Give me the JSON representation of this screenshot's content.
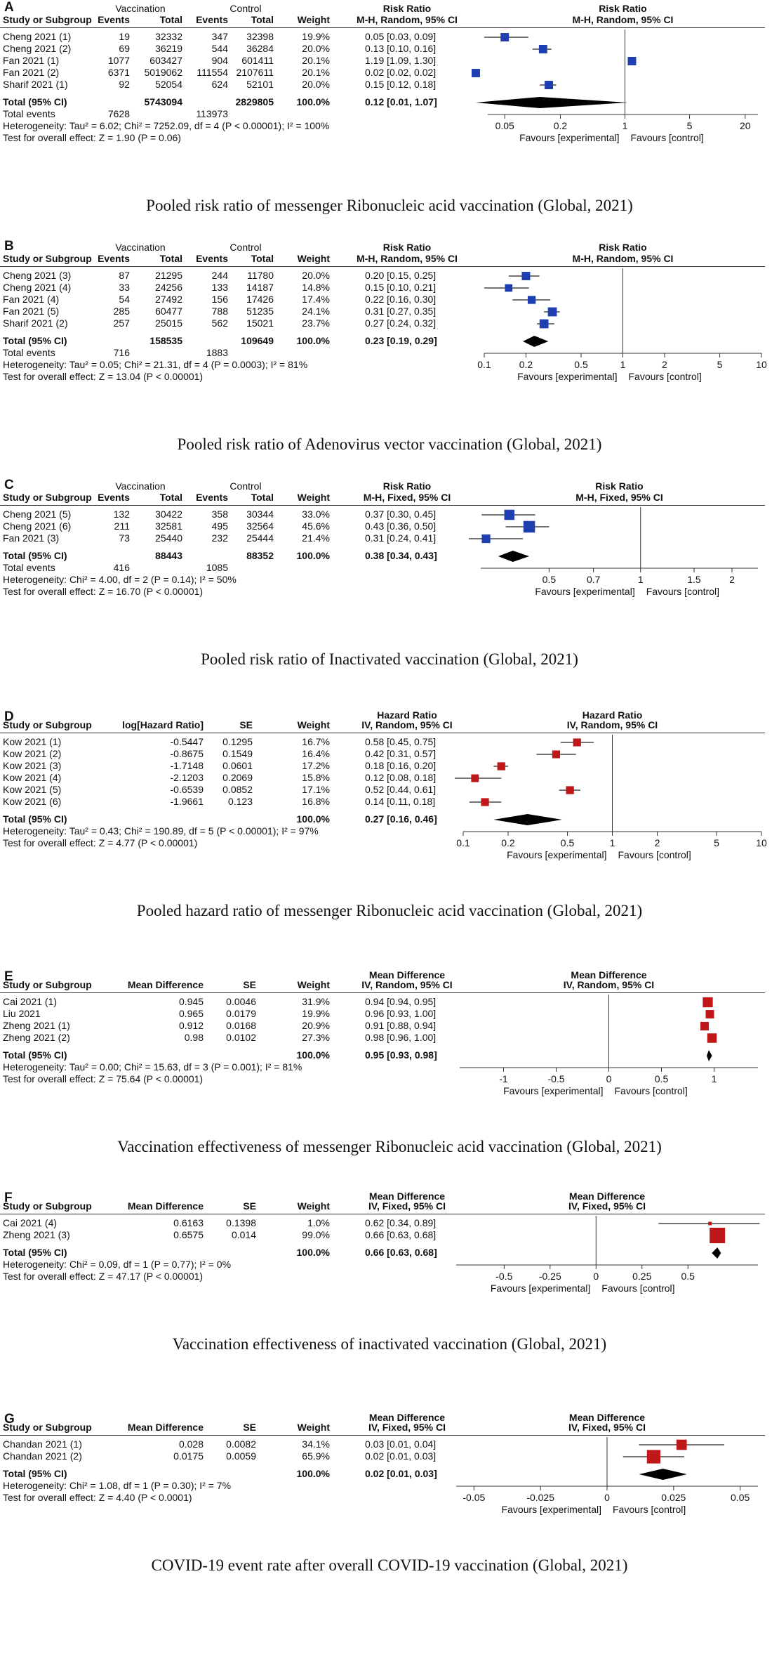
{
  "panels": [
    {
      "label": "A",
      "caption": "Pooled risk ratio of messenger Ribonucleic acid vaccination (Global, 2021)",
      "columns": [
        "Events",
        "Total",
        "Events",
        "Total"
      ],
      "group_headers": [
        "Vaccination",
        "Control"
      ],
      "col_study": "Study or Subgroup",
      "col_weight": "Weight",
      "col_effect": "Risk Ratio",
      "col_method": "M-H, Random, 95% CI",
      "rows": [
        {
          "study": "Cheng 2021 (1)",
          "c": [
            "19",
            "32332",
            "347",
            "32398"
          ],
          "weight": "19.9%",
          "ci": "0.05 [0.03, 0.09]",
          "est": 0.05,
          "lo": 0.03,
          "hi": 0.09
        },
        {
          "study": "Cheng 2021 (2)",
          "c": [
            "69",
            "36219",
            "544",
            "36284"
          ],
          "weight": "20.0%",
          "ci": "0.13 [0.10, 0.16]",
          "est": 0.13,
          "lo": 0.1,
          "hi": 0.16
        },
        {
          "study": "Fan 2021 (1)",
          "c": [
            "1077",
            "603427",
            "904",
            "601411"
          ],
          "weight": "20.1%",
          "ci": "1.19 [1.09, 1.30]",
          "est": 1.19,
          "lo": 1.09,
          "hi": 1.3
        },
        {
          "study": "Fan 2021 (2)",
          "c": [
            "6371",
            "5019062",
            "111554",
            "2107611"
          ],
          "weight": "20.1%",
          "ci": "0.02 [0.02, 0.02]",
          "est": 0.02,
          "lo": 0.02,
          "hi": 0.02
        },
        {
          "study": "Sharif 2021 (1)",
          "c": [
            "92",
            "52054",
            "624",
            "52101"
          ],
          "weight": "20.0%",
          "ci": "0.15 [0.12, 0.18]",
          "est": 0.15,
          "lo": 0.12,
          "hi": 0.18
        }
      ],
      "total": {
        "label": "Total (95% CI)",
        "c": [
          "",
          "5743094",
          "",
          "2829805"
        ],
        "weight": "100.0%",
        "ci": "0.12 [0.01, 1.07]",
        "est": 0.12,
        "lo": 0.01,
        "hi": 1.07
      },
      "events": {
        "label": "Total events",
        "c": [
          "7628",
          "",
          "113973",
          ""
        ]
      },
      "heterogeneity": "Heterogeneity: Tau² = 6.02; Chi² = 7252.09, df = 4 (P < 0.00001); I² = 100%",
      "overall": "Test for overall effect: Z = 1.90 (P = 0.06)",
      "scale": "log",
      "xlim": [
        0.03,
        30
      ],
      "ticks": [
        0.05,
        0.2,
        1,
        5,
        20
      ],
      "tick_labels": [
        "0.05",
        "0.2",
        "1",
        "5",
        "20"
      ],
      "null": 1,
      "favours_left": "Favours [experimental]",
      "favours_right": "Favours [control]",
      "marker_color": "#1f3fb0"
    },
    {
      "label": "B",
      "caption": "Pooled risk ratio of Adenovirus vector vaccination (Global, 2021)",
      "columns": [
        "Events",
        "Total",
        "Events",
        "Total"
      ],
      "group_headers": [
        "Vaccination",
        "Control"
      ],
      "col_study": "Study or Subgroup",
      "col_weight": "Weight",
      "col_effect": "Risk Ratio",
      "col_method": "M-H, Random, 95% CI",
      "rows": [
        {
          "study": "Cheng 2021 (3)",
          "c": [
            "87",
            "21295",
            "244",
            "11780"
          ],
          "weight": "20.0%",
          "ci": "0.20 [0.15, 0.25]",
          "est": 0.2,
          "lo": 0.15,
          "hi": 0.25
        },
        {
          "study": "Cheng 2021 (4)",
          "c": [
            "33",
            "24256",
            "133",
            "14187"
          ],
          "weight": "14.8%",
          "ci": "0.15 [0.10, 0.21]",
          "est": 0.15,
          "lo": 0.1,
          "hi": 0.21
        },
        {
          "study": "Fan 2021 (4)",
          "c": [
            "54",
            "27492",
            "156",
            "17426"
          ],
          "weight": "17.4%",
          "ci": "0.22 [0.16, 0.30]",
          "est": 0.22,
          "lo": 0.16,
          "hi": 0.3
        },
        {
          "study": "Fan 2021 (5)",
          "c": [
            "285",
            "60477",
            "788",
            "51235"
          ],
          "weight": "24.1%",
          "ci": "0.31 [0.27, 0.35]",
          "est": 0.31,
          "lo": 0.27,
          "hi": 0.35
        },
        {
          "study": "Sharif 2021 (2)",
          "c": [
            "257",
            "25015",
            "562",
            "15021"
          ],
          "weight": "23.7%",
          "ci": "0.27 [0.24, 0.32]",
          "est": 0.27,
          "lo": 0.24,
          "hi": 0.32
        }
      ],
      "total": {
        "label": "Total (95% CI)",
        "c": [
          "",
          "158535",
          "",
          "109649"
        ],
        "weight": "100.0%",
        "ci": "0.23 [0.19, 0.29]",
        "est": 0.23,
        "lo": 0.19,
        "hi": 0.29
      },
      "events": {
        "label": "Total events",
        "c": [
          "716",
          "",
          "1883",
          ""
        ]
      },
      "heterogeneity": "Heterogeneity: Tau² = 0.05; Chi² = 21.31, df = 4 (P = 0.0003); I² = 81%",
      "overall": "Test for overall effect: Z = 13.04 (P < 0.00001)",
      "scale": "log",
      "xlim": [
        0.1,
        10
      ],
      "ticks": [
        0.1,
        0.2,
        0.5,
        1,
        2,
        5,
        10
      ],
      "tick_labels": [
        "0.1",
        "0.2",
        "0.5",
        "1",
        "2",
        "5",
        "10"
      ],
      "null": 1,
      "favours_left": "Favours [experimental]",
      "favours_right": "Favours [control]",
      "marker_color": "#1f3fb0"
    },
    {
      "label": "C",
      "caption": "Pooled risk ratio of Inactivated vaccination (Global, 2021)",
      "columns": [
        "Events",
        "Total",
        "Events",
        "Total"
      ],
      "group_headers": [
        "Vaccination",
        "Control"
      ],
      "col_study": "Study or Subgroup",
      "col_weight": "Weight",
      "col_effect": "Risk Ratio",
      "col_method": "M-H, Fixed, 95% CI",
      "rows": [
        {
          "study": "Cheng 2021 (5)",
          "c": [
            "132",
            "30422",
            "358",
            "30344"
          ],
          "weight": "33.0%",
          "ci": "0.37 [0.30, 0.45]",
          "est": 0.37,
          "lo": 0.3,
          "hi": 0.45
        },
        {
          "study": "Cheng 2021 (6)",
          "c": [
            "211",
            "32581",
            "495",
            "32564"
          ],
          "weight": "45.6%",
          "ci": "0.43 [0.36, 0.50]",
          "est": 0.43,
          "lo": 0.36,
          "hi": 0.5
        },
        {
          "study": "Fan 2021 (3)",
          "c": [
            "73",
            "25440",
            "232",
            "25444"
          ],
          "weight": "21.4%",
          "ci": "0.31 [0.24, 0.41]",
          "est": 0.31,
          "lo": 0.24,
          "hi": 0.41
        }
      ],
      "total": {
        "label": "Total (95% CI)",
        "c": [
          "",
          "88443",
          "",
          "88352"
        ],
        "weight": "100.0%",
        "ci": "0.38 [0.34, 0.43]",
        "est": 0.38,
        "lo": 0.34,
        "hi": 0.43
      },
      "events": {
        "label": "Total events",
        "c": [
          "416",
          "",
          "1085",
          ""
        ]
      },
      "heterogeneity": "Heterogeneity: Chi² = 4.00, df = 2 (P = 0.14); I² = 50%",
      "overall": "Test for overall effect: Z = 16.70 (P < 0.00001)",
      "scale": "log",
      "xlim": [
        0.29,
        2.5
      ],
      "ticks": [
        0.5,
        0.7,
        1,
        1.5,
        2
      ],
      "tick_labels": [
        "0.5",
        "0.7",
        "1",
        "1.5",
        "2"
      ],
      "null": 1,
      "favours_left": "Favours [experimental]",
      "favours_right": "Favours [control]",
      "marker_color": "#1f3fb0"
    },
    {
      "label": "D",
      "caption": "Pooled hazard ratio of messenger Ribonucleic acid vaccination (Global, 2021)",
      "columns": [
        "log[Hazard Ratio]",
        "SE"
      ],
      "group_headers": [],
      "col_study": "Study or Subgroup",
      "col_weight": "Weight",
      "col_effect": "Hazard Ratio",
      "col_method": "IV, Random, 95% CI",
      "rows": [
        {
          "study": "Kow 2021 (1)",
          "c": [
            "-0.5447",
            "0.1295"
          ],
          "weight": "16.7%",
          "ci": "0.58 [0.45, 0.75]",
          "est": 0.58,
          "lo": 0.45,
          "hi": 0.75
        },
        {
          "study": "Kow 2021 (2)",
          "c": [
            "-0.8675",
            "0.1549"
          ],
          "weight": "16.4%",
          "ci": "0.42 [0.31, 0.57]",
          "est": 0.42,
          "lo": 0.31,
          "hi": 0.57
        },
        {
          "study": "Kow 2021 (3)",
          "c": [
            "-1.7148",
            "0.0601"
          ],
          "weight": "17.2%",
          "ci": "0.18 [0.16, 0.20]",
          "est": 0.18,
          "lo": 0.16,
          "hi": 0.2
        },
        {
          "study": "Kow 2021 (4)",
          "c": [
            "-2.1203",
            "0.2069"
          ],
          "weight": "15.8%",
          "ci": "0.12 [0.08, 0.18]",
          "est": 0.12,
          "lo": 0.08,
          "hi": 0.18
        },
        {
          "study": "Kow 2021 (5)",
          "c": [
            "-0.6539",
            "0.0852"
          ],
          "weight": "17.1%",
          "ci": "0.52 [0.44, 0.61]",
          "est": 0.52,
          "lo": 0.44,
          "hi": 0.61
        },
        {
          "study": "Kow 2021 (6)",
          "c": [
            "-1.9661",
            "0.123"
          ],
          "weight": "16.8%",
          "ci": "0.14 [0.11, 0.18]",
          "est": 0.14,
          "lo": 0.11,
          "hi": 0.18
        }
      ],
      "total": {
        "label": "Total (95% CI)",
        "c": [
          "",
          ""
        ],
        "weight": "100.0%",
        "ci": "0.27 [0.16, 0.46]",
        "est": 0.27,
        "lo": 0.16,
        "hi": 0.46
      },
      "events": null,
      "heterogeneity": "Heterogeneity: Tau² = 0.43; Chi² = 190.89, df = 5 (P < 0.00001); I² = 97%",
      "overall": "Test for overall effect: Z = 4.77 (P < 0.00001)",
      "scale": "log",
      "xlim": [
        0.1,
        10
      ],
      "ticks": [
        0.1,
        0.2,
        0.5,
        1,
        2,
        5,
        10
      ],
      "tick_labels": [
        "0.1",
        "0.2",
        "0.5",
        "1",
        "2",
        "5",
        "10"
      ],
      "null": 1,
      "favours_left": "Favours [experimental]",
      "favours_right": "Favours [control]",
      "marker_color": "#c01818"
    },
    {
      "label": "E",
      "caption": "Vaccination effectiveness of messenger Ribonucleic acid vaccination (Global, 2021)",
      "columns": [
        "Mean Difference",
        "SE"
      ],
      "group_headers": [],
      "col_study": "Study or Subgroup",
      "col_weight": "Weight",
      "col_effect": "Mean Difference",
      "col_method": "IV, Random, 95% CI",
      "rows": [
        {
          "study": "Cai 2021 (1)",
          "c": [
            "0.945",
            "0.0046"
          ],
          "weight": "31.9%",
          "ci": "0.94 [0.94, 0.95]",
          "est": 0.94,
          "lo": 0.94,
          "hi": 0.95
        },
        {
          "study": "Liu 2021",
          "c": [
            "0.965",
            "0.0179"
          ],
          "weight": "19.9%",
          "ci": "0.96 [0.93, 1.00]",
          "est": 0.96,
          "lo": 0.93,
          "hi": 1.0
        },
        {
          "study": "Zheng 2021 (1)",
          "c": [
            "0.912",
            "0.0168"
          ],
          "weight": "20.9%",
          "ci": "0.91 [0.88, 0.94]",
          "est": 0.91,
          "lo": 0.88,
          "hi": 0.94
        },
        {
          "study": "Zheng 2021 (2)",
          "c": [
            "0.98",
            "0.0102"
          ],
          "weight": "27.3%",
          "ci": "0.98 [0.96, 1.00]",
          "est": 0.98,
          "lo": 0.96,
          "hi": 1.0
        }
      ],
      "total": {
        "label": "Total (95% CI)",
        "c": [
          "",
          ""
        ],
        "weight": "100.0%",
        "ci": "0.95 [0.93, 0.98]",
        "est": 0.95,
        "lo": 0.93,
        "hi": 0.98
      },
      "events": null,
      "heterogeneity": "Heterogeneity: Tau² = 0.00; Chi² = 15.63, df = 3 (P = 0.001); I² = 81%",
      "overall": "Test for overall effect: Z = 75.64 (P < 0.00001)",
      "scale": "linear",
      "xlim": [
        -1.45,
        1.45
      ],
      "ticks": [
        -1,
        -0.5,
        0,
        0.5,
        1
      ],
      "tick_labels": [
        "-1",
        "-0.5",
        "0",
        "0.5",
        "1"
      ],
      "null": 0,
      "favours_left": "Favours [experimental]",
      "favours_right": "Favours [control]",
      "marker_color": "#c01818"
    },
    {
      "label": "F",
      "caption": "Vaccination effectiveness of inactivated vaccination (Global, 2021)",
      "columns": [
        "Mean Difference",
        "SE"
      ],
      "group_headers": [],
      "col_study": "Study or Subgroup",
      "col_weight": "Weight",
      "col_effect": "Mean Difference",
      "col_method": "IV, Fixed, 95% CI",
      "rows": [
        {
          "study": "Cai 2021 (4)",
          "c": [
            "0.6163",
            "0.1398"
          ],
          "weight": "1.0%",
          "ci": "0.62 [0.34, 0.89]",
          "est": 0.62,
          "lo": 0.34,
          "hi": 0.89
        },
        {
          "study": "Zheng 2021 (3)",
          "c": [
            "0.6575",
            "0.014"
          ],
          "weight": "99.0%",
          "ci": "0.66 [0.63, 0.68]",
          "est": 0.66,
          "lo": 0.63,
          "hi": 0.68
        }
      ],
      "total": {
        "label": "Total (95% CI)",
        "c": [
          "",
          ""
        ],
        "weight": "100.0%",
        "ci": "0.66 [0.63, 0.68]",
        "est": 0.66,
        "lo": 0.63,
        "hi": 0.68
      },
      "events": null,
      "heterogeneity": "Heterogeneity: Chi² = 0.09, df = 1 (P = 0.77); I² = 0%",
      "overall": "Test for overall effect: Z = 47.17 (P < 0.00001)",
      "scale": "linear",
      "xlim": [
        -0.78,
        0.9
      ],
      "ticks": [
        -0.5,
        -0.25,
        0,
        0.25,
        0.5
      ],
      "tick_labels": [
        "-0.5",
        "-0.25",
        "0",
        "0.25",
        "0.5"
      ],
      "null": 0,
      "favours_left": "Favours [experimental]",
      "favours_right": "Favours [control]",
      "marker_color": "#c01818"
    },
    {
      "label": "G",
      "caption": "COVID-19 event rate after overall COVID-19 vaccination (Global, 2021)",
      "columns": [
        "Mean Difference",
        "SE"
      ],
      "group_headers": [],
      "col_study": "Study or Subgroup",
      "col_weight": "Weight",
      "col_effect": "Mean Difference",
      "col_method": "IV, Fixed, 95% CI",
      "rows": [
        {
          "study": "Chandan 2021 (1)",
          "c": [
            "0.028",
            "0.0082"
          ],
          "weight": "34.1%",
          "ci": "0.03 [0.01, 0.04]",
          "est": 0.028,
          "lo": 0.012,
          "hi": 0.044
        },
        {
          "study": "Chandan 2021 (2)",
          "c": [
            "0.0175",
            "0.0059"
          ],
          "weight": "65.9%",
          "ci": "0.02 [0.01, 0.03]",
          "est": 0.0175,
          "lo": 0.006,
          "hi": 0.029
        }
      ],
      "total": {
        "label": "Total (95% CI)",
        "c": [
          "",
          ""
        ],
        "weight": "100.0%",
        "ci": "0.02 [0.01, 0.03]",
        "est": 0.021,
        "lo": 0.012,
        "hi": 0.03
      },
      "events": null,
      "heterogeneity": "Heterogeneity: Chi² = 1.08, df = 1 (P = 0.30); I² = 7%",
      "overall": "Test for overall effect: Z = 4.40 (P < 0.0001)",
      "scale": "linear",
      "xlim": [
        -0.058,
        0.058
      ],
      "ticks": [
        -0.05,
        -0.025,
        0,
        0.025,
        0.05
      ],
      "tick_labels": [
        "-0.05",
        "-0.025",
        "0",
        "0.025",
        "0.05"
      ],
      "null": 0,
      "favours_left": "Favours [experimental]",
      "favours_right": "Favours [control]",
      "marker_color": "#c01818"
    }
  ]
}
